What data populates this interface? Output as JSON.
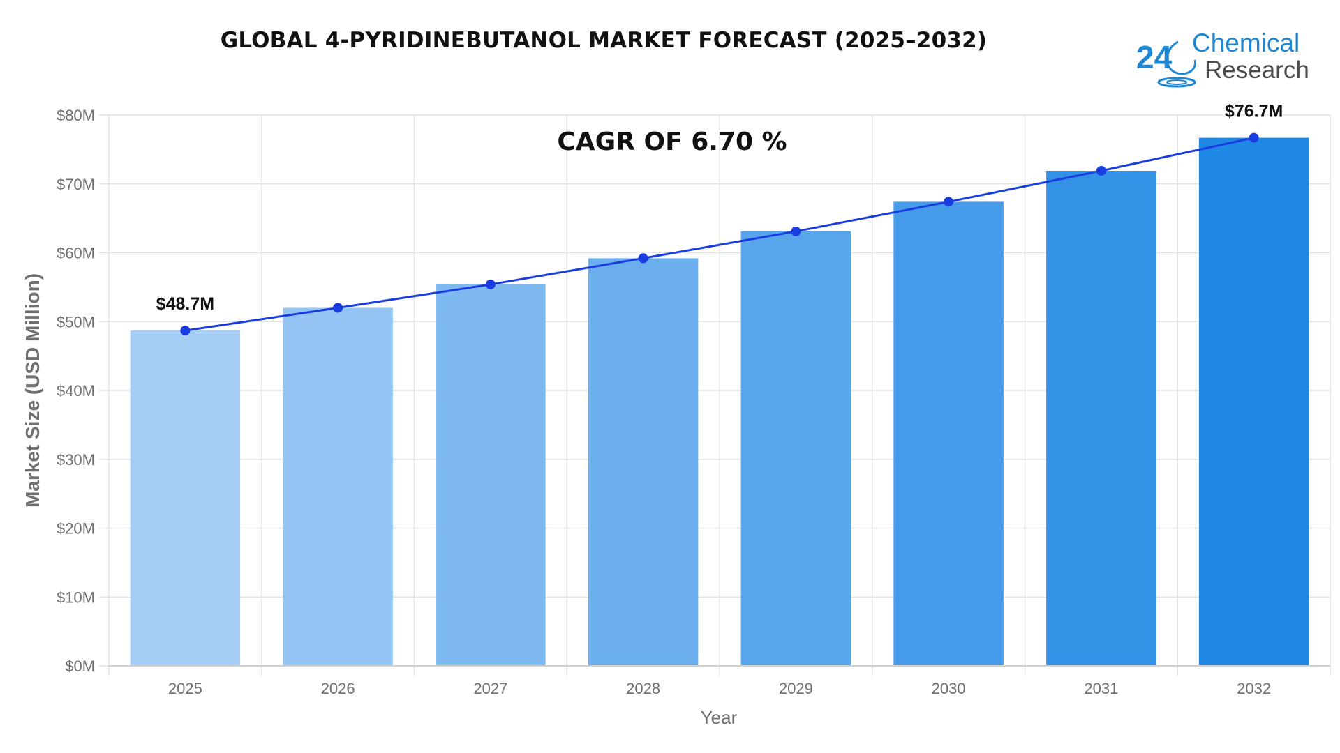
{
  "logo": {
    "number": "24",
    "line1": "Chemical",
    "line2": "Research",
    "colors": {
      "primary": "#1d87d3",
      "secondary": "#4d4d4d"
    }
  },
  "chart_data": {
    "type": "bar",
    "title": "GLOBAL 4-PYRIDINEBUTANOL MARKET FORECAST (2025–2032)",
    "annotation": "CAGR OF 6.70 %",
    "xlabel": "Year",
    "ylabel": "Market Size (USD Million)",
    "ylim": [
      0,
      80
    ],
    "yticks": [
      0,
      10,
      20,
      30,
      40,
      50,
      60,
      70,
      80
    ],
    "ytick_labels": [
      "$0M",
      "$10M",
      "$20M",
      "$30M",
      "$40M",
      "$50M",
      "$60M",
      "$70M",
      "$80M"
    ],
    "grid": true,
    "categories": [
      "2025",
      "2026",
      "2027",
      "2028",
      "2029",
      "2030",
      "2031",
      "2032"
    ],
    "values": [
      48.7,
      52.0,
      55.4,
      59.2,
      63.1,
      67.4,
      71.9,
      76.7
    ],
    "trend_line": true,
    "data_labels": [
      {
        "index": 0,
        "text": "$48.7M"
      },
      {
        "index": 7,
        "text": "$76.7M"
      }
    ],
    "colors": {
      "bars": [
        "#a6cdf6",
        "#93c4f4",
        "#7fb9f1",
        "#6aaeee",
        "#58a5eb",
        "#469bea",
        "#3391e6",
        "#1f88e5"
      ],
      "line": "#1a3de0",
      "point": "#1a3de0",
      "grid": "#e3e3e3",
      "axis_text": "#6f6f6f",
      "label_text": "#111111"
    }
  }
}
